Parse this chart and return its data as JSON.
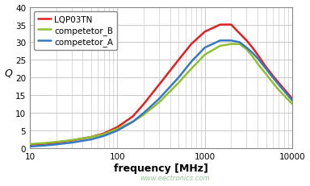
{
  "title": "",
  "xlabel": "frequency [MHz]",
  "ylabel": "Q",
  "xlim": [
    10,
    10000
  ],
  "ylim": [
    0,
    40
  ],
  "yticks": [
    0,
    5,
    10,
    15,
    20,
    25,
    30,
    35,
    40
  ],
  "xticks": [
    10,
    100,
    1000,
    10000
  ],
  "xtick_labels": [
    "10",
    "100",
    "1000",
    "10000"
  ],
  "background_color": "#ffffff",
  "plot_bg_color": "#ffffff",
  "grid_color": "#c0c0c0",
  "series": [
    {
      "label": "LQP03TN",
      "color": "#e02020",
      "x": [
        10,
        15,
        20,
        30,
        50,
        70,
        100,
        150,
        200,
        300,
        500,
        700,
        1000,
        1500,
        2000,
        2500,
        3000,
        3500,
        4000,
        5000,
        6000,
        7000,
        10000
      ],
      "y": [
        1.0,
        1.3,
        1.6,
        2.2,
        3.2,
        4.2,
        6.0,
        9.0,
        12.5,
        18.0,
        25.0,
        29.5,
        33.0,
        35.0,
        35.0,
        32.5,
        30.5,
        28.5,
        26.5,
        23.0,
        20.5,
        18.5,
        14.0
      ]
    },
    {
      "label": "competetor_B",
      "color": "#90c030",
      "x": [
        10,
        15,
        20,
        30,
        50,
        70,
        100,
        150,
        200,
        300,
        500,
        700,
        1000,
        1500,
        2000,
        2500,
        3000,
        3500,
        4000,
        5000,
        6000,
        7000,
        10000
      ],
      "y": [
        1.2,
        1.5,
        1.8,
        2.3,
        3.2,
        4.0,
        5.5,
        7.5,
        9.5,
        13.0,
        18.5,
        22.5,
        26.5,
        29.0,
        29.5,
        29.5,
        28.0,
        26.0,
        24.0,
        21.0,
        18.5,
        16.5,
        12.5
      ]
    },
    {
      "label": "competetor_A",
      "color": "#3878c0",
      "x": [
        10,
        15,
        20,
        30,
        50,
        70,
        100,
        150,
        200,
        300,
        500,
        700,
        1000,
        1500,
        2000,
        2500,
        3000,
        3500,
        4000,
        5000,
        6000,
        7000,
        10000
      ],
      "y": [
        0.5,
        0.8,
        1.1,
        1.6,
        2.5,
        3.5,
        5.0,
        7.5,
        10.0,
        14.0,
        20.0,
        24.5,
        28.5,
        30.5,
        30.5,
        30.0,
        28.5,
        27.0,
        25.5,
        22.5,
        20.0,
        18.0,
        13.5
      ]
    }
  ],
  "legend_loc": "upper left",
  "line_width": 1.8,
  "watermark": "www.eectronics.com"
}
